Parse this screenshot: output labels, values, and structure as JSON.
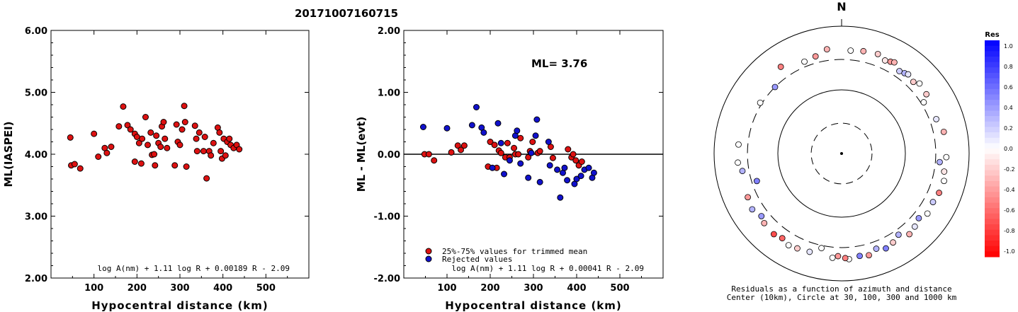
{
  "title": "20171007160715",
  "chart_data": [
    {
      "type": "scatter",
      "ylabel": "ML(IASPEI)",
      "xlabel": "Hypocentral distance (km)",
      "xlim": [
        0,
        600
      ],
      "ylim": [
        2,
        6
      ],
      "x_ticks": [
        "100",
        "200",
        "300",
        "400",
        "500"
      ],
      "y_ticks": [
        "2.00",
        "3.00",
        "4.00",
        "5.00",
        "6.00"
      ],
      "formula": "log A(nm) + 1.11 log R + 0.00189 R - 2.09",
      "colors": {
        "point": "#dd1111"
      },
      "points": [
        [
          45,
          4.27
        ],
        [
          47,
          3.82
        ],
        [
          55,
          3.84
        ],
        [
          68,
          3.77
        ],
        [
          100,
          4.33
        ],
        [
          110,
          3.96
        ],
        [
          125,
          4.1
        ],
        [
          130,
          4.02
        ],
        [
          140,
          4.12
        ],
        [
          158,
          4.45
        ],
        [
          168,
          4.77
        ],
        [
          178,
          4.47
        ],
        [
          185,
          4.4
        ],
        [
          195,
          4.33
        ],
        [
          195,
          3.88
        ],
        [
          200,
          4.28
        ],
        [
          205,
          4.18
        ],
        [
          210,
          3.85
        ],
        [
          212,
          4.25
        ],
        [
          220,
          4.6
        ],
        [
          225,
          4.15
        ],
        [
          232,
          4.35
        ],
        [
          235,
          3.99
        ],
        [
          240,
          4.0
        ],
        [
          242,
          3.82
        ],
        [
          245,
          4.3
        ],
        [
          250,
          4.18
        ],
        [
          255,
          4.12
        ],
        [
          258,
          4.45
        ],
        [
          262,
          4.52
        ],
        [
          265,
          4.25
        ],
        [
          270,
          4.1
        ],
        [
          288,
          3.82
        ],
        [
          292,
          4.48
        ],
        [
          295,
          4.2
        ],
        [
          300,
          4.15
        ],
        [
          305,
          4.4
        ],
        [
          310,
          4.78
        ],
        [
          312,
          4.52
        ],
        [
          315,
          3.8
        ],
        [
          335,
          4.46
        ],
        [
          338,
          4.25
        ],
        [
          340,
          4.05
        ],
        [
          345,
          4.35
        ],
        [
          355,
          4.05
        ],
        [
          358,
          4.28
        ],
        [
          362,
          3.61
        ],
        [
          368,
          4.05
        ],
        [
          372,
          3.98
        ],
        [
          378,
          4.18
        ],
        [
          388,
          4.43
        ],
        [
          392,
          4.35
        ],
        [
          395,
          4.05
        ],
        [
          398,
          3.93
        ],
        [
          402,
          4.25
        ],
        [
          406,
          3.98
        ],
        [
          410,
          4.2
        ],
        [
          415,
          4.25
        ],
        [
          418,
          4.15
        ],
        [
          425,
          4.1
        ],
        [
          432,
          4.15
        ],
        [
          438,
          4.08
        ]
      ]
    },
    {
      "type": "scatter",
      "ylabel": "ML - ML(evt)",
      "xlabel": "Hypocentral distance (km)",
      "xlim": [
        0,
        600
      ],
      "ylim": [
        -2,
        2
      ],
      "x_ticks": [
        "100",
        "200",
        "300",
        "400",
        "500"
      ],
      "y_ticks": [
        "-2.00",
        "-1.00",
        "0.00",
        "1.00",
        "2.00"
      ],
      "annotation": "ML= 3.76",
      "formula": "log A(nm) + 1.11 log R + 0.00041 R - 2.09",
      "series": [
        {
          "name": "25%-75% values for trimmed mean",
          "color": "#dd1111",
          "points": [
            [
              48,
              0.0
            ],
            [
              58,
              0.0
            ],
            [
              70,
              -0.1
            ],
            [
              110,
              0.03
            ],
            [
              125,
              0.14
            ],
            [
              132,
              0.07
            ],
            [
              140,
              0.14
            ],
            [
              195,
              -0.2
            ],
            [
              200,
              0.2
            ],
            [
              210,
              0.15
            ],
            [
              215,
              -0.22
            ],
            [
              220,
              0.06
            ],
            [
              225,
              0.02
            ],
            [
              235,
              -0.05
            ],
            [
              240,
              0.18
            ],
            [
              245,
              -0.05
            ],
            [
              255,
              0.1
            ],
            [
              258,
              0.0
            ],
            [
              265,
              0.0
            ],
            [
              270,
              0.26
            ],
            [
              288,
              -0.05
            ],
            [
              292,
              0.05
            ],
            [
              298,
              0.2
            ],
            [
              310,
              0.02
            ],
            [
              315,
              0.05
            ],
            [
              340,
              0.12
            ],
            [
              345,
              -0.06
            ],
            [
              380,
              0.08
            ],
            [
              388,
              -0.05
            ],
            [
              392,
              0.0
            ],
            [
              398,
              -0.1
            ],
            [
              405,
              -0.18
            ],
            [
              412,
              -0.12
            ]
          ]
        },
        {
          "name": "Rejected values",
          "color": "#1111cc",
          "points": [
            [
              45,
              0.44
            ],
            [
              100,
              0.42
            ],
            [
              158,
              0.47
            ],
            [
              168,
              0.76
            ],
            [
              180,
              0.43
            ],
            [
              185,
              0.35
            ],
            [
              205,
              -0.22
            ],
            [
              218,
              0.5
            ],
            [
              225,
              0.18
            ],
            [
              232,
              -0.32
            ],
            [
              245,
              -0.1
            ],
            [
              258,
              0.3
            ],
            [
              262,
              0.38
            ],
            [
              270,
              -0.15
            ],
            [
              288,
              -0.38
            ],
            [
              295,
              0.02
            ],
            [
              305,
              0.3
            ],
            [
              308,
              0.56
            ],
            [
              315,
              -0.45
            ],
            [
              335,
              0.2
            ],
            [
              338,
              -0.18
            ],
            [
              355,
              -0.25
            ],
            [
              362,
              -0.7
            ],
            [
              368,
              -0.3
            ],
            [
              372,
              -0.22
            ],
            [
              378,
              -0.42
            ],
            [
              395,
              -0.48
            ],
            [
              400,
              -0.4
            ],
            [
              410,
              -0.35
            ],
            [
              418,
              -0.25
            ],
            [
              428,
              -0.22
            ],
            [
              436,
              -0.38
            ],
            [
              440,
              -0.3
            ]
          ]
        }
      ],
      "legend_position": "bottom-left"
    },
    {
      "type": "polar-scatter",
      "north_label": "N",
      "caption_line1": "Residuals as a function of azimuth and distance",
      "caption_line2": "Center (10km), Circle at 30, 100, 300 and 1000 km",
      "colorbar_title": "Res",
      "colorbar_ticks": [
        "1.0",
        "0.8",
        "0.6",
        "0.4",
        "0.2",
        "0.0",
        "-0.2",
        "-0.4",
        "-0.6",
        "-0.8",
        "-1.0"
      ],
      "colors": {
        "positive": "#0000ff",
        "zero": "#ffffff",
        "negative": "#ff0000"
      },
      "stations": [
        [
          5,
          420,
          0.0
        ],
        [
          12,
          440,
          -0.3
        ],
        [
          20,
          460,
          -0.2
        ],
        [
          25,
          410,
          -0.1
        ],
        [
          28,
          430,
          -0.4
        ],
        [
          30,
          450,
          -0.3
        ],
        [
          35,
          380,
          0.2
        ],
        [
          38,
          400,
          0.3
        ],
        [
          40,
          420,
          0.1
        ],
        [
          45,
          390,
          -0.2
        ],
        [
          48,
          440,
          0.0
        ],
        [
          55,
          420,
          -0.2
        ],
        [
          58,
          330,
          0.0
        ],
        [
          70,
          380,
          0.1
        ],
        [
          78,
          435,
          -0.3
        ],
        [
          92,
          440,
          0.0
        ],
        [
          95,
          350,
          0.3
        ],
        [
          100,
          430,
          -0.1
        ],
        [
          105,
          460,
          0.0
        ],
        [
          112,
          445,
          -0.5
        ],
        [
          118,
          420,
          0.2
        ],
        [
          125,
          440,
          0.0
        ],
        [
          130,
          380,
          0.4
        ],
        [
          135,
          420,
          0.1
        ],
        [
          140,
          450,
          -0.3
        ],
        [
          145,
          360,
          0.3
        ],
        [
          150,
          410,
          -0.2
        ],
        [
          155,
          440,
          0.5
        ],
        [
          160,
          390,
          0.3
        ],
        [
          165,
          450,
          -0.4
        ],
        [
          170,
          430,
          0.5
        ],
        [
          176,
          460,
          0.0
        ],
        [
          178,
          440,
          -0.5
        ],
        [
          182,
          410,
          -0.4
        ],
        [
          185,
          440,
          0.0
        ],
        [
          192,
          330,
          0.0
        ],
        [
          198,
          420,
          0.1
        ],
        [
          205,
          440,
          -0.2
        ],
        [
          210,
          460,
          0.0
        ],
        [
          215,
          420,
          -0.6
        ],
        [
          220,
          450,
          -0.7
        ],
        [
          228,
          430,
          -0.3
        ],
        [
          232,
          395,
          0.4
        ],
        [
          238,
          450,
          0.3
        ],
        [
          245,
          420,
          -0.4
        ],
        [
          252,
          250,
          0.5
        ],
        [
          260,
          380,
          0.3
        ],
        [
          265,
          430,
          0.0
        ],
        [
          275,
          420,
          0.0
        ],
        [
          302,
          320,
          0.0
        ],
        [
          315,
          300,
          0.4
        ],
        [
          325,
          460,
          -0.5
        ],
        [
          338,
          360,
          0.0
        ],
        [
          345,
          380,
          -0.4
        ],
        [
          352,
          450,
          -0.3
        ]
      ]
    }
  ]
}
